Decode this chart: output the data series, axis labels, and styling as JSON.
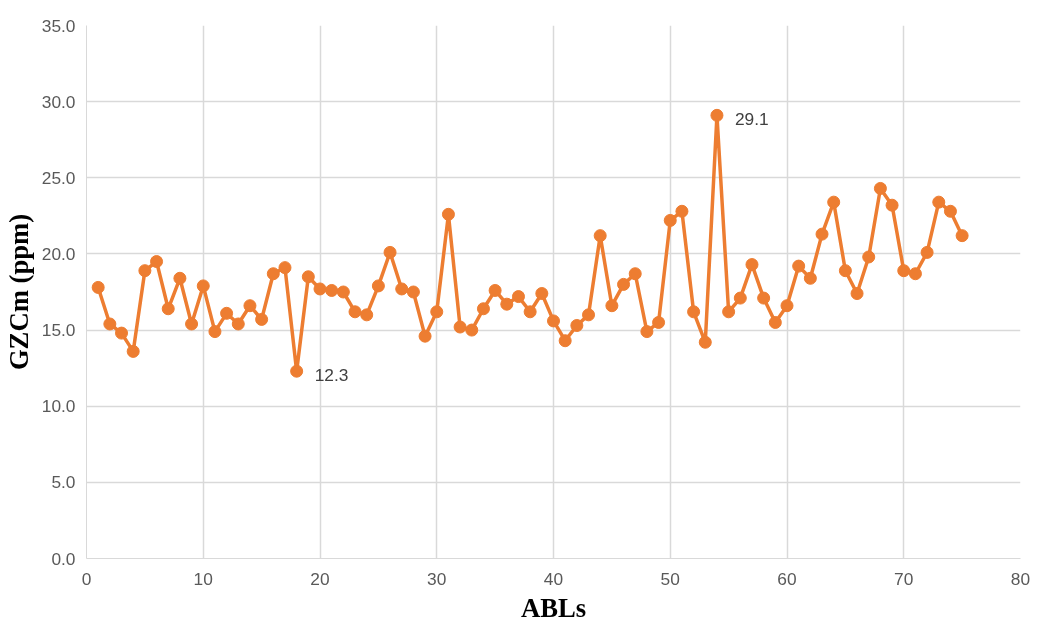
{
  "chart_data": {
    "type": "line",
    "xlabel": "ABLs",
    "ylabel": "GZCm (ppm)",
    "x": [
      1,
      2,
      3,
      4,
      5,
      6,
      7,
      8,
      9,
      10,
      11,
      12,
      13,
      14,
      15,
      16,
      17,
      18,
      19,
      20,
      21,
      22,
      23,
      24,
      25,
      26,
      27,
      28,
      29,
      30,
      31,
      32,
      33,
      34,
      35,
      36,
      37,
      38,
      39,
      40,
      41,
      42,
      43,
      44,
      45,
      46,
      47,
      48,
      49,
      50,
      51,
      52,
      53,
      54,
      55,
      56,
      57,
      58,
      59,
      60,
      61,
      62,
      63,
      64,
      65,
      66,
      67,
      68,
      69,
      70,
      71,
      72,
      73,
      74,
      75
    ],
    "series": [
      {
        "color": "#ed7d31",
        "values": [
          17.8,
          15.4,
          14.8,
          13.6,
          18.9,
          19.5,
          16.4,
          18.4,
          15.4,
          17.9,
          14.9,
          16.1,
          15.4,
          16.6,
          15.7,
          18.7,
          19.1,
          12.3,
          18.5,
          17.7,
          17.6,
          17.5,
          16.2,
          16.0,
          17.9,
          20.1,
          17.7,
          17.5,
          14.6,
          16.2,
          22.6,
          15.2,
          15.0,
          16.4,
          17.6,
          16.7,
          17.2,
          16.2,
          17.4,
          15.6,
          14.3,
          15.3,
          16.0,
          21.2,
          16.6,
          18.0,
          18.7,
          14.9,
          15.5,
          22.2,
          22.8,
          16.2,
          14.2,
          29.1,
          16.2,
          17.1,
          19.3,
          17.1,
          15.5,
          16.6,
          19.2,
          18.4,
          21.3,
          23.4,
          18.9,
          17.4,
          19.8,
          24.3,
          23.2,
          18.9,
          18.7,
          20.1,
          23.4,
          22.8,
          21.2
        ],
        "value_labels": [
          null,
          null,
          null,
          null,
          null,
          null,
          null,
          null,
          null,
          null,
          null,
          null,
          null,
          null,
          null,
          null,
          null,
          "12.3",
          null,
          null,
          null,
          null,
          null,
          null,
          null,
          null,
          null,
          null,
          null,
          null,
          null,
          null,
          null,
          null,
          null,
          null,
          null,
          null,
          null,
          null,
          null,
          null,
          null,
          null,
          null,
          null,
          null,
          null,
          null,
          null,
          null,
          null,
          null,
          "29.1",
          null,
          null,
          null,
          null,
          null,
          null,
          null,
          null,
          null,
          null,
          null,
          null,
          null,
          null,
          null,
          null,
          null,
          null,
          null,
          null,
          null
        ]
      }
    ],
    "xlim": [
      0,
      80
    ],
    "xticks": [
      0,
      10,
      20,
      30,
      40,
      50,
      60,
      70,
      80
    ],
    "ylim": [
      0,
      35
    ],
    "yticks": [
      {
        "value": 0,
        "label": "0.0"
      },
      {
        "value": 5,
        "label": "5.0"
      },
      {
        "value": 10,
        "label": "10.0"
      },
      {
        "value": 15,
        "label": "15.0"
      },
      {
        "value": 20,
        "label": "20.0"
      },
      {
        "value": 25,
        "label": "25.0"
      },
      {
        "value": 30,
        "label": "30.0"
      },
      {
        "value": 35,
        "label": "35.0"
      }
    ],
    "grid": true,
    "marker": "circle",
    "line_style": "solid"
  }
}
